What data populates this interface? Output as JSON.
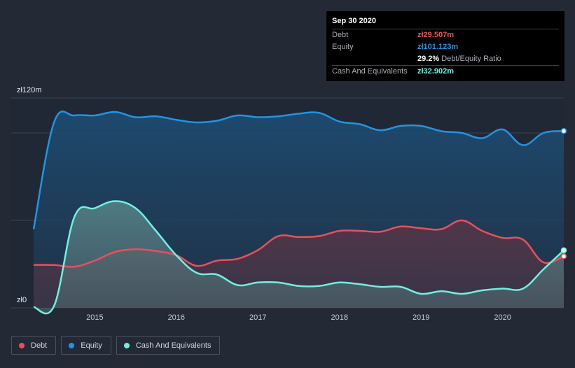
{
  "tooltip": {
    "date": "Sep 30 2020",
    "debt_label": "Debt",
    "debt_value": "zł29.507m",
    "equity_label": "Equity",
    "equity_value": "zł101.123m",
    "ratio_value": "29.2%",
    "ratio_label": "Debt/Equity Ratio",
    "cash_label": "Cash And Equivalents",
    "cash_value": "zł32.902m"
  },
  "legend": {
    "debt": "Debt",
    "equity": "Equity",
    "cash": "Cash And Equivalents"
  },
  "colors": {
    "debt": "#e8505b",
    "equity": "#2394df",
    "cash": "#6ff0e0",
    "background": "#232a36"
  },
  "chart_data": {
    "type": "area",
    "y_tick_labels": [
      "zł120m",
      "zł0"
    ],
    "ylim": [
      0,
      120
    ],
    "xlim": [
      2014.25,
      2020.75
    ],
    "x_ticks": [
      2015,
      2016,
      2017,
      2018,
      2019,
      2020
    ],
    "x_tick_labels": [
      "2015",
      "2016",
      "2017",
      "2018",
      "2019",
      "2020"
    ],
    "grid": true,
    "legend_position": "bottom-left",
    "series": [
      {
        "name": "Debt",
        "key": "debt",
        "points": [
          [
            2014.25,
            24.5
          ],
          [
            2014.5,
            24.5
          ],
          [
            2014.75,
            23.5
          ],
          [
            2015.0,
            27
          ],
          [
            2015.25,
            32
          ],
          [
            2015.5,
            33.5
          ],
          [
            2015.75,
            32.5
          ],
          [
            2016.0,
            30
          ],
          [
            2016.25,
            24
          ],
          [
            2016.5,
            27
          ],
          [
            2016.75,
            28
          ],
          [
            2017.0,
            33
          ],
          [
            2017.25,
            41
          ],
          [
            2017.5,
            40.5
          ],
          [
            2017.75,
            41
          ],
          [
            2018.0,
            44
          ],
          [
            2018.25,
            44
          ],
          [
            2018.5,
            43.5
          ],
          [
            2018.75,
            46.5
          ],
          [
            2019.0,
            45.5
          ],
          [
            2019.25,
            45
          ],
          [
            2019.5,
            50
          ],
          [
            2019.75,
            44
          ],
          [
            2020.0,
            40
          ],
          [
            2020.25,
            39
          ],
          [
            2020.5,
            26
          ],
          [
            2020.75,
            29.5
          ]
        ]
      },
      {
        "name": "Equity",
        "key": "equity",
        "points": [
          [
            2014.25,
            45
          ],
          [
            2014.5,
            106
          ],
          [
            2014.75,
            110
          ],
          [
            2015.0,
            110
          ],
          [
            2015.25,
            112
          ],
          [
            2015.5,
            109
          ],
          [
            2015.75,
            109.5
          ],
          [
            2016.0,
            107.5
          ],
          [
            2016.25,
            106
          ],
          [
            2016.5,
            107
          ],
          [
            2016.75,
            110
          ],
          [
            2017.0,
            109
          ],
          [
            2017.25,
            109.5
          ],
          [
            2017.5,
            111
          ],
          [
            2017.75,
            111.5
          ],
          [
            2018.0,
            106.5
          ],
          [
            2018.25,
            105
          ],
          [
            2018.5,
            101.5
          ],
          [
            2018.75,
            104
          ],
          [
            2019.0,
            104
          ],
          [
            2019.25,
            101
          ],
          [
            2019.5,
            100
          ],
          [
            2019.75,
            97
          ],
          [
            2020.0,
            102
          ],
          [
            2020.25,
            93
          ],
          [
            2020.5,
            100
          ],
          [
            2020.75,
            101.1
          ]
        ]
      },
      {
        "name": "Cash And Equivalents",
        "key": "cash",
        "points": [
          [
            2014.25,
            0.5
          ],
          [
            2014.5,
            1
          ],
          [
            2014.75,
            52
          ],
          [
            2015.0,
            57
          ],
          [
            2015.25,
            61
          ],
          [
            2015.5,
            57
          ],
          [
            2015.75,
            44
          ],
          [
            2016.0,
            30
          ],
          [
            2016.25,
            20
          ],
          [
            2016.5,
            19
          ],
          [
            2016.75,
            13
          ],
          [
            2017.0,
            14.5
          ],
          [
            2017.25,
            14.5
          ],
          [
            2017.5,
            12.5
          ],
          [
            2017.75,
            12.5
          ],
          [
            2018.0,
            14.5
          ],
          [
            2018.25,
            13.5
          ],
          [
            2018.5,
            12
          ],
          [
            2018.75,
            12
          ],
          [
            2019.0,
            8
          ],
          [
            2019.25,
            9.5
          ],
          [
            2019.5,
            8
          ],
          [
            2019.75,
            10
          ],
          [
            2020.0,
            11
          ],
          [
            2020.25,
            11
          ],
          [
            2020.5,
            22
          ],
          [
            2020.75,
            32.9
          ]
        ]
      }
    ]
  }
}
